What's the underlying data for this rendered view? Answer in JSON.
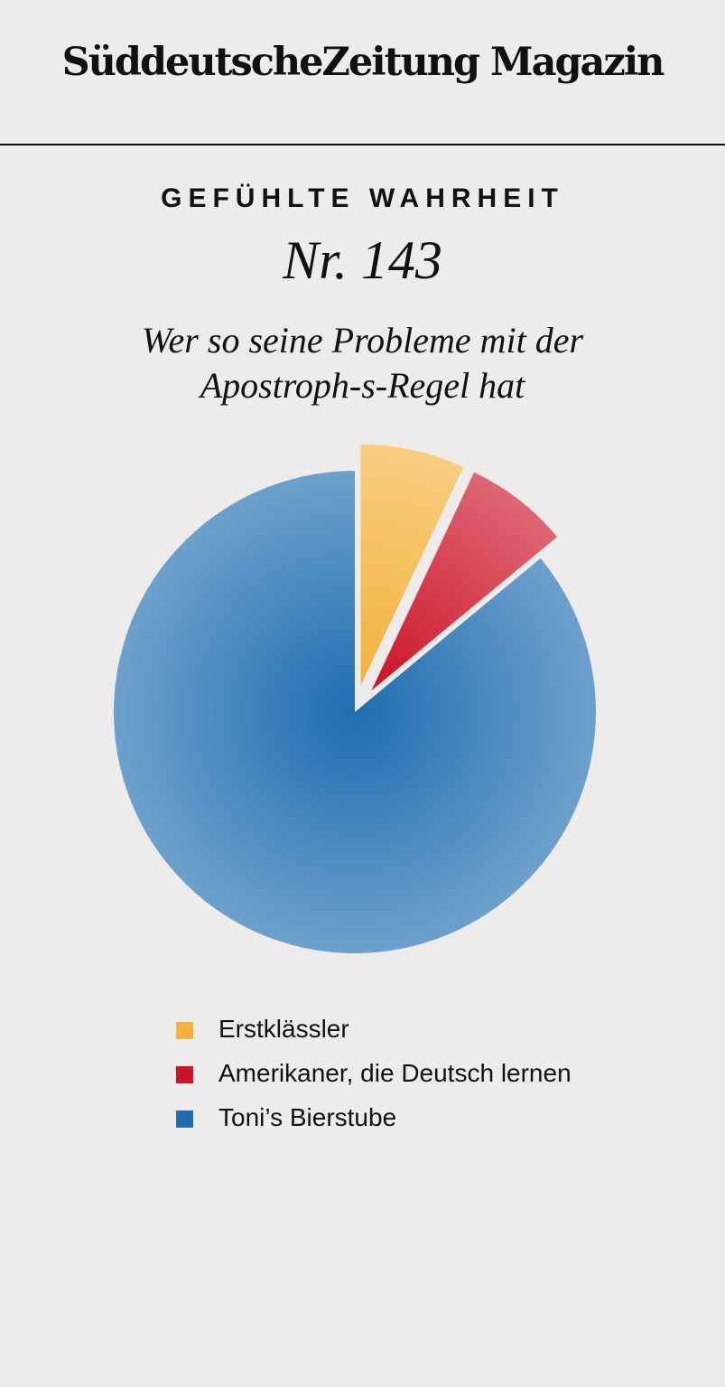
{
  "header": {
    "brand": "SüddeutscheZeitung Magazin"
  },
  "kicker": "GEFÜHLTE WAHRHEIT",
  "issue": "Nr. 143",
  "chart_data": {
    "type": "pie",
    "title": "Wer so seine Probleme mit der Apostroph-s-Regel hat",
    "title_lines": [
      "Wer so seine Probleme mit der",
      "Apostroph-s-Regel hat"
    ],
    "slices": [
      {
        "label": "Erstklässler",
        "value": 7,
        "color": "#f2b23c",
        "exploded": true
      },
      {
        "label": "Amerikaner, die Deutsch lernen",
        "value": 7,
        "color": "#cc1328",
        "exploded": true
      },
      {
        "label": "Toni’s Bierstube",
        "value": 86,
        "color": "#1f6db0",
        "exploded": false
      }
    ],
    "legend_position": "bottom-center"
  }
}
